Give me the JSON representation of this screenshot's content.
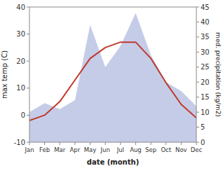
{
  "chart_data": {
    "type": "line",
    "categories": [
      "Jan",
      "Feb",
      "Mar",
      "Apr",
      "May",
      "Jun",
      "Jul",
      "Aug",
      "Sep",
      "Oct",
      "Nov",
      "Dec"
    ],
    "series": [
      {
        "type": "area",
        "color": "#c5cce8",
        "axis": "y2",
        "values": [
          10,
          13,
          11,
          14,
          39,
          25,
          32,
          43,
          29,
          20,
          17,
          12
        ]
      },
      {
        "type": "line",
        "color": "#c0392b",
        "values": [
          -2,
          0,
          5,
          13,
          21,
          25,
          27,
          27,
          21,
          12,
          4,
          -1
        ]
      }
    ],
    "x_label": "date (month)",
    "y_label": "max temp (C)",
    "y2_label": "med. precipitation (kg/m2)",
    "ylim": [
      -10,
      40
    ],
    "yticks": [
      -10,
      0,
      10,
      20,
      30,
      40
    ],
    "y2lim": [
      0,
      45
    ],
    "y2ticks": [
      0,
      5,
      10,
      15,
      20,
      25,
      30,
      35,
      40,
      45
    ],
    "grid": false
  }
}
